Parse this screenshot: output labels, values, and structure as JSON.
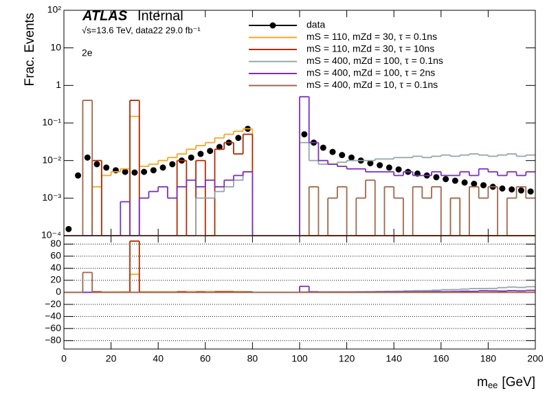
{
  "chart_data": [
    {
      "type": "histogram",
      "title": {
        "atlas": "ATLAS",
        "status": "Internal"
      },
      "subtitle": "√s=13.6 TeV, data22 29.0 fb⁻¹",
      "annotation": "2e",
      "y_label": "Frac. Events",
      "log_y": true,
      "ylim": [
        0.0001,
        100
      ],
      "yticks": [
        {
          "value": 0.0001,
          "label": "10⁻⁴"
        },
        {
          "value": 0.001,
          "label": "10⁻³"
        },
        {
          "value": 0.01,
          "label": "10⁻²"
        },
        {
          "value": 0.1,
          "label": "10⁻¹"
        },
        1,
        10,
        {
          "value": 100,
          "label": "10²"
        }
      ],
      "xlim": [
        0,
        200
      ],
      "bins": [
        0,
        4,
        8,
        12,
        16,
        20,
        24,
        28,
        32,
        36,
        40,
        44,
        48,
        52,
        56,
        60,
        64,
        68,
        72,
        76,
        80,
        84,
        88,
        92,
        96,
        100,
        104,
        108,
        112,
        116,
        120,
        124,
        128,
        132,
        136,
        140,
        144,
        148,
        152,
        156,
        160,
        164,
        168,
        172,
        176,
        180,
        184,
        188,
        192,
        196,
        200
      ],
      "legend": "top-right",
      "series": [
        {
          "name": "data",
          "style": "points",
          "color": "#000000",
          "values": [
            0.00015,
            0.004,
            0.012,
            0.008,
            0.0065,
            0.0055,
            0.005,
            0.0048,
            0.005,
            0.0055,
            0.0065,
            0.008,
            0.01,
            0.012,
            0.015,
            0.018,
            0.023,
            0.03,
            0.04,
            0.07,
            null,
            null,
            null,
            null,
            null,
            0.05,
            0.03,
            0.022,
            0.017,
            0.014,
            0.012,
            0.01,
            0.0085,
            0.0075,
            0.0065,
            0.0058,
            0.005,
            0.0045,
            0.004,
            0.0036,
            0.0032,
            0.0029,
            0.0026,
            0.0024,
            0.0022,
            0.002,
            0.0018,
            0.0017,
            0.0016,
            0.0015
          ]
        },
        {
          "name": "mS = 110, mZd = 30, τ = 0.1ns",
          "style": "step",
          "color": "#f5a623",
          "values": [
            0,
            0,
            0,
            0.002,
            0.004,
            0.005,
            0.006,
            0.15,
            0.007,
            0.008,
            0.01,
            0.012,
            0.015,
            0.02,
            0.025,
            0.03,
            0.04,
            0.05,
            0.06,
            0.07,
            0,
            0,
            0,
            0,
            0,
            0,
            0,
            0,
            0,
            0,
            0,
            0,
            0,
            0,
            0,
            0,
            0,
            0,
            0,
            0,
            0,
            0.001,
            0,
            0,
            0,
            0,
            0,
            0,
            0,
            0
          ]
        },
        {
          "name": "mS = 110, mZd = 30, τ = 10ns",
          "style": "step",
          "color": "#b22a00",
          "values": [
            0,
            0,
            0,
            0.01,
            0,
            0,
            0,
            0.4,
            0,
            0,
            0,
            0,
            0.01,
            0,
            0.01,
            0,
            0.02,
            0.03,
            0.015,
            0.05,
            0,
            0,
            0,
            0,
            0,
            0,
            0,
            0,
            0,
            0,
            0,
            0,
            0,
            0,
            0,
            0,
            0,
            0,
            0,
            0,
            0,
            0,
            0,
            0,
            0,
            0,
            0,
            0,
            0,
            0
          ]
        },
        {
          "name": "mS = 400, mZd = 100, τ = 0.1ns",
          "style": "step",
          "color": "#95a5a6",
          "values": [
            0,
            0,
            0,
            0,
            0,
            0,
            0,
            0,
            0,
            0,
            0,
            0,
            0,
            0,
            0.001,
            0.001,
            0.0015,
            0.002,
            0.003,
            0.005,
            0,
            0,
            0,
            0,
            0,
            0.03,
            0.01,
            0.008,
            0.008,
            0.009,
            0.01,
            0.01,
            0.01,
            0.011,
            0.011,
            0.012,
            0.012,
            0.013,
            0.012,
            0.013,
            0.014,
            0.013,
            0.014,
            0.015,
            0.014,
            0.013,
            0.014,
            0.015,
            0.013,
            0.014
          ]
        },
        {
          "name": "mS = 400, mZd = 100, τ = 2ns",
          "style": "step",
          "color": "#7b2fbe",
          "values": [
            0,
            0,
            0,
            0,
            0,
            0,
            0.0008,
            0,
            0.001,
            0.0015,
            0.002,
            0.001,
            0.002,
            0.003,
            0.002,
            0.003,
            0.002,
            0.003,
            0.004,
            0.005,
            0,
            0,
            0,
            0,
            0,
            0.5,
            0.03,
            0.01,
            0.008,
            0.007,
            0.006,
            0.006,
            0.005,
            0.005,
            0.005,
            0.004,
            0.005,
            0.004,
            0.004,
            0.005,
            0.004,
            0.004,
            0.005,
            0.004,
            0.006,
            0.005,
            0.004,
            0.005,
            0.004,
            0.005
          ]
        },
        {
          "name": "mS = 400, mZd = 10, τ = 0.1ns",
          "style": "step",
          "color": "#a0664a",
          "values": [
            0,
            0,
            0.4,
            0,
            0,
            0,
            0,
            0,
            0,
            0,
            0,
            0,
            0,
            0,
            0,
            0,
            0,
            0,
            0,
            0,
            0,
            0,
            0,
            0,
            0,
            0,
            0.002,
            0,
            0.001,
            0.002,
            0,
            0.001,
            0.003,
            0,
            0.002,
            0.001,
            0,
            0.002,
            0.001,
            0.002,
            0,
            0.001,
            0,
            0.002,
            0.001,
            0.002,
            0,
            0.001,
            0.002,
            0.001
          ]
        }
      ]
    },
    {
      "type": "histogram",
      "x_label": {
        "symbol": "m",
        "subscript": "ee",
        "unit": "[GeV]"
      },
      "ylim": [
        -94,
        94
      ],
      "yticks": [
        {
          "value": -80,
          "label": "−80"
        },
        {
          "value": -60,
          "label": "−60"
        },
        {
          "value": -40,
          "label": "−40"
        },
        {
          "value": -20,
          "label": "−20"
        },
        0,
        20,
        40,
        60,
        80
      ],
      "grid": "dotted",
      "xlim": [
        0,
        200
      ],
      "xticks": [
        0,
        20,
        40,
        60,
        80,
        100,
        120,
        140,
        160,
        180,
        200
      ],
      "bins": [
        0,
        4,
        8,
        12,
        16,
        20,
        24,
        28,
        32,
        36,
        40,
        44,
        48,
        52,
        56,
        60,
        64,
        68,
        72,
        76,
        80,
        84,
        88,
        92,
        96,
        100,
        104,
        108,
        112,
        116,
        120,
        124,
        128,
        132,
        136,
        140,
        144,
        148,
        152,
        156,
        160,
        164,
        168,
        172,
        176,
        180,
        184,
        188,
        192,
        196,
        200
      ],
      "series": [
        {
          "color": "#f5a623",
          "values": [
            0,
            0,
            0,
            0.3,
            0.5,
            0.6,
            0.8,
            30,
            1,
            1,
            1,
            1,
            1,
            1.2,
            1.3,
            1.3,
            1.4,
            1.4,
            1.2,
            1,
            0,
            0,
            0,
            0,
            0,
            0,
            0,
            0,
            0,
            0,
            0,
            0,
            0,
            0,
            0,
            0,
            0,
            0,
            0,
            0,
            0,
            0.5,
            0,
            0,
            0,
            0,
            0,
            0,
            0,
            0
          ]
        },
        {
          "color": "#b22a00",
          "values": [
            0,
            0,
            0,
            1,
            0,
            0,
            0,
            85,
            0,
            0,
            0,
            0,
            1,
            0,
            0.7,
            0,
            1,
            1,
            0.5,
            0.7,
            0,
            0,
            0,
            0,
            0,
            0,
            0,
            0,
            0,
            0,
            0,
            0,
            0,
            0,
            0,
            0,
            0,
            0,
            0,
            0,
            0,
            0,
            0,
            0,
            0,
            0,
            0,
            0,
            0,
            0
          ]
        },
        {
          "color": "#95a5a6",
          "values": [
            0,
            0,
            0,
            0,
            0,
            0,
            0,
            0,
            0,
            0,
            0,
            0,
            0,
            0,
            0,
            0,
            0,
            0,
            0,
            0,
            0,
            0,
            0,
            0,
            0,
            0.6,
            0.3,
            0.4,
            0.5,
            0.6,
            0.8,
            1,
            1.2,
            1.5,
            1.7,
            2,
            2.4,
            2.9,
            3,
            3.6,
            4.4,
            4.5,
            5.4,
            6.2,
            6.4,
            6.5,
            7.8,
            8.8,
            8.1,
            9.3
          ]
        },
        {
          "color": "#7b2fbe",
          "values": [
            0,
            0,
            0,
            0,
            0,
            0,
            0,
            0,
            0,
            0,
            0,
            0,
            0,
            0,
            0,
            0,
            0,
            0,
            0,
            0,
            0,
            0,
            0,
            0,
            0,
            10,
            1,
            0.5,
            0.5,
            0.5,
            0.5,
            0.6,
            0.6,
            0.7,
            0.8,
            0.7,
            1,
            0.9,
            1,
            1.4,
            1.2,
            1.4,
            1.9,
            1.7,
            2.7,
            2.5,
            2.2,
            2.9,
            2.5,
            3.3
          ]
        },
        {
          "color": "#a0664a",
          "values": [
            0,
            0,
            33,
            0,
            0,
            0,
            0,
            0,
            0,
            0,
            0,
            0,
            0,
            0,
            0,
            0,
            0,
            0,
            0,
            0,
            0,
            0,
            0,
            0,
            0,
            0,
            0,
            0,
            0,
            0,
            0,
            0,
            0,
            0,
            0,
            0,
            0,
            0,
            0,
            0,
            0,
            0,
            0,
            0,
            0,
            0,
            0,
            0,
            0,
            0
          ]
        }
      ]
    }
  ]
}
